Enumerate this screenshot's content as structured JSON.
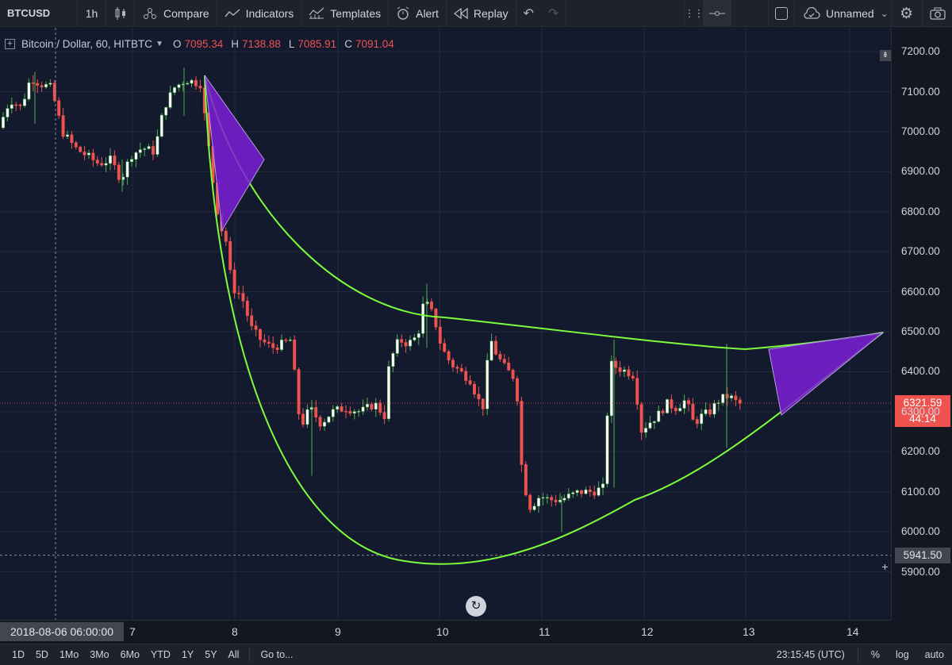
{
  "toolbar": {
    "symbol": "BTCUSD",
    "interval": "1h",
    "compare": "Compare",
    "indicators": "Indicators",
    "templates": "Templates",
    "alert": "Alert",
    "replay": "Replay",
    "layout_name": "Unnamed"
  },
  "legend": {
    "title": "Bitcoin / Dollar, 60, HITBTC",
    "open_label": "O",
    "open": "7095.34",
    "high_label": "H",
    "high": "7138.88",
    "low_label": "L",
    "low": "7085.91",
    "close_label": "C",
    "close": "7091.04"
  },
  "price_axis": {
    "ticks": [
      "7200.00",
      "7100.00",
      "7000.00",
      "6900.00",
      "6800.00",
      "6700.00",
      "6600.00",
      "6500.00",
      "6400.00",
      "6300.00",
      "6200.00",
      "6100.00",
      "6000.00",
      "5900.00"
    ],
    "last_price": "6321.59",
    "countdown": "44:14",
    "crosshair_price": "5941.50"
  },
  "time_axis": {
    "cursor_label": "2018-08-06 06:00:00",
    "ticks": [
      "7",
      "8",
      "9",
      "10",
      "11",
      "12",
      "13",
      "14"
    ]
  },
  "bottom": {
    "ranges": [
      "1D",
      "5D",
      "1Mo",
      "3Mo",
      "6Mo",
      "YTD",
      "1Y",
      "5Y",
      "All"
    ],
    "goto": "Go to...",
    "clock": "23:15:45 (UTC)",
    "percent": "%",
    "log": "log",
    "auto": "auto"
  },
  "colors": {
    "up": "#ffffff",
    "down": "#ef5350",
    "wick_up": "#4caf50",
    "pattern_line": "#7cfc3c",
    "triangle": "#7b1fd6",
    "background": "#131a2e"
  },
  "chart_data": {
    "type": "candlestick",
    "ylim": [
      5780,
      7260
    ],
    "x_labels": [
      "7",
      "8",
      "9",
      "10",
      "11",
      "12",
      "13",
      "14"
    ],
    "last_price": 6321.59
  }
}
